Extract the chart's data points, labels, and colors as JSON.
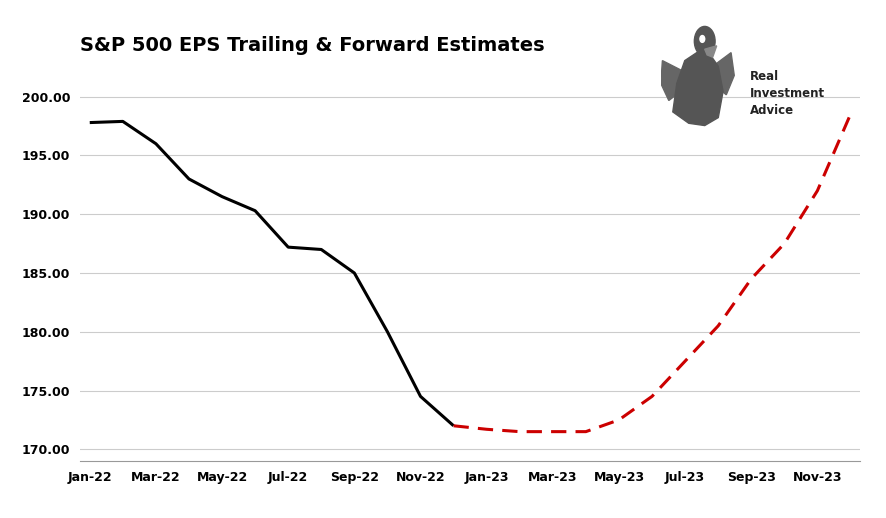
{
  "title": "S&P 500 EPS Trailing & Forward Estimates",
  "title_fontsize": 14,
  "background_color": "#ffffff",
  "ylim": [
    169.0,
    202.5
  ],
  "yticks": [
    170.0,
    175.0,
    180.0,
    185.0,
    190.0,
    195.0,
    200.0
  ],
  "grid_color": "#cccccc",
  "trailing_x": [
    0,
    1,
    2,
    3,
    4,
    5,
    6,
    7,
    8,
    9,
    10,
    11
  ],
  "trailing_y": [
    197.8,
    197.9,
    196.0,
    193.0,
    191.5,
    190.3,
    187.2,
    187.0,
    185.0,
    180.0,
    174.5,
    172.0
  ],
  "forward_x": [
    11,
    12,
    13,
    14,
    15,
    16,
    17,
    18,
    19,
    20,
    21,
    22,
    23
  ],
  "forward_y": [
    172.0,
    171.7,
    171.5,
    171.5,
    171.5,
    172.5,
    174.5,
    177.5,
    180.5,
    184.5,
    187.5,
    192.0,
    198.5
  ],
  "xtick_labels": [
    "Jan-22",
    "Mar-22",
    "May-22",
    "Jul-22",
    "Sep-22",
    "Nov-22",
    "Jan-23",
    "Mar-23",
    "May-23",
    "Jul-23",
    "Sep-23",
    "Nov-23"
  ],
  "xtick_positions": [
    0,
    2,
    4,
    6,
    8,
    10,
    12,
    14,
    16,
    18,
    20,
    22
  ],
  "trailing_color": "#000000",
  "forward_color": "#cc0000",
  "line_width": 2.2,
  "logo_text": "Real\nInvestment\nAdvice"
}
